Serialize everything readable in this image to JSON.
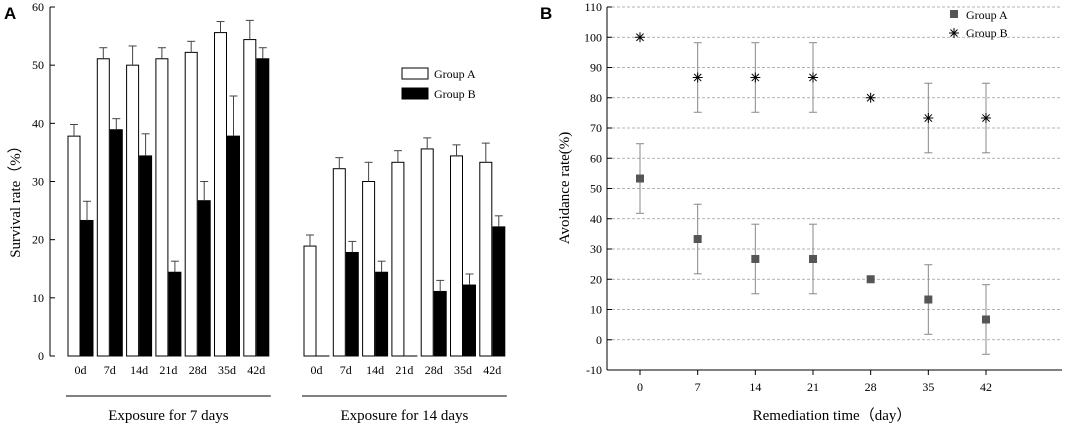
{
  "chart_data": [
    {
      "panel": "A",
      "type": "bar",
      "ylabel": "Survival rate（%）",
      "ylim": [
        0,
        60
      ],
      "yticks": [
        0,
        10,
        20,
        30,
        40,
        50,
        60
      ],
      "categories": [
        "0d",
        "7d",
        "14d",
        "21d",
        "28d",
        "35d",
        "42d"
      ],
      "groups": [
        {
          "label": "Exposure for 7 days",
          "series": [
            {
              "name": "Group A",
              "values": [
                37.8,
                51.1,
                50.0,
                51.1,
                52.2,
                55.6,
                54.4
              ],
              "errors": [
                2.0,
                1.9,
                3.3,
                1.9,
                1.9,
                1.9,
                3.3
              ]
            },
            {
              "name": "Group B",
              "values": [
                23.3,
                38.9,
                34.4,
                14.4,
                26.7,
                37.8,
                51.1
              ],
              "errors": [
                3.3,
                1.9,
                3.8,
                1.9,
                3.3,
                6.9,
                1.9
              ]
            }
          ]
        },
        {
          "label": "Exposure for 14 days",
          "series": [
            {
              "name": "Group A",
              "values": [
                18.9,
                32.2,
                30.0,
                33.3,
                35.6,
                34.4,
                33.3
              ],
              "errors": [
                1.9,
                1.9,
                3.3,
                2.0,
                1.9,
                1.9,
                3.3
              ]
            },
            {
              "name": "Group B",
              "values": [
                0.0,
                17.8,
                14.4,
                0.0,
                11.1,
                12.2,
                22.2
              ],
              "errors": [
                0.0,
                1.9,
                1.9,
                0.0,
                1.9,
                1.9,
                1.9
              ]
            }
          ]
        }
      ],
      "legend": [
        "Group A",
        "Group B"
      ],
      "legend_position": "top-right"
    },
    {
      "panel": "B",
      "type": "scatter",
      "xlabel": "Remediation time（day）",
      "ylabel": "Avoidance rate(%)",
      "x": [
        0,
        7,
        14,
        21,
        28,
        35,
        42
      ],
      "ylim": [
        -10,
        110
      ],
      "yticks": [
        -10,
        0,
        10,
        20,
        30,
        40,
        50,
        60,
        70,
        80,
        90,
        100,
        110
      ],
      "series": [
        {
          "name": "Group A",
          "marker": "square",
          "values": [
            53.3,
            33.3,
            26.7,
            26.7,
            20.0,
            13.3,
            6.7
          ],
          "errors": [
            11.5,
            11.5,
            11.5,
            11.5,
            0.0,
            11.5,
            11.5
          ]
        },
        {
          "name": "Group B",
          "marker": "asterisk",
          "values": [
            100.0,
            86.7,
            86.7,
            86.7,
            80.0,
            73.3,
            73.3
          ],
          "errors": [
            0.0,
            11.5,
            11.5,
            11.5,
            0.0,
            11.5,
            11.5
          ]
        }
      ],
      "grid": "horizontal dashed",
      "legend": [
        "Group A",
        "Group B"
      ],
      "legend_position": "top-right"
    }
  ]
}
